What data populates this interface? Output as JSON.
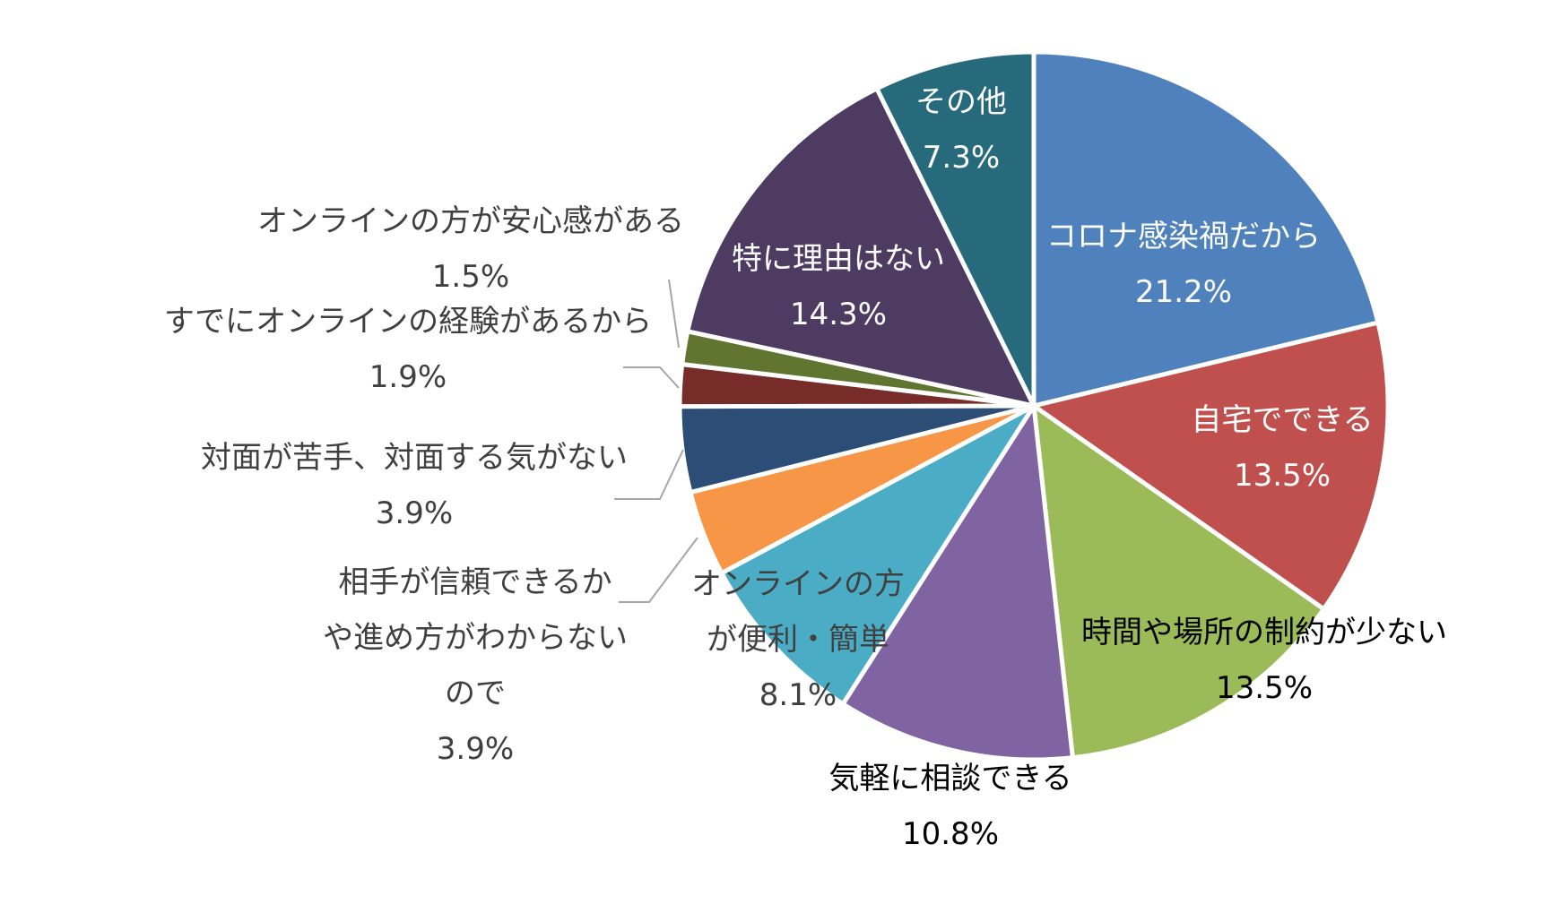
{
  "chart_data": {
    "type": "pie",
    "start_angle_deg": 0,
    "direction": "clockwise",
    "slices": [
      {
        "label": [
          "コロナ感染禍だから"
        ],
        "value_label": "21.2%",
        "value": 21.2,
        "color": "#4f81bd",
        "label_color": "#ffffff",
        "label_mode": "inside",
        "lines": [
          0
        ]
      },
      {
        "label": [
          "自宅でできる"
        ],
        "value_label": "13.5%",
        "value": 13.5,
        "color": "#c0504d",
        "label_color": "#ffffff",
        "label_mode": "inside",
        "lines": [
          0
        ]
      },
      {
        "label": [
          "時間や場所の制約が少ない"
        ],
        "value_label": "13.5%",
        "value": 13.5,
        "color": "#9bbb59",
        "label_color": "#000000",
        "label_mode": "inside",
        "lines": [
          0
        ]
      },
      {
        "label": [
          "気軽に相談できる"
        ],
        "value_label": "10.8%",
        "value": 10.8,
        "color": "#8064a2",
        "label_color": "#000000",
        "label_mode": "outside-below",
        "lines": [
          0
        ]
      },
      {
        "label": [
          "オンラインの方",
          "が便利・簡単"
        ],
        "value_label": "8.1%",
        "value": 8.1,
        "color": "#4bacc6",
        "label_color": "#404040",
        "label_mode": "inside",
        "lines": [
          0,
          1
        ]
      },
      {
        "label": [
          "相手が信頼できるか",
          "や進め方がわからない",
          "ので"
        ],
        "value_label": "3.9%",
        "value": 3.9,
        "color": "#f79646",
        "label_color": "#404040",
        "label_mode": "outside-left",
        "lines": [
          0,
          1,
          2
        ]
      },
      {
        "label": [
          "対面が苦手、対面する気がない"
        ],
        "value_label": "3.9%",
        "value": 3.9,
        "color": "#2c4d75",
        "label_color": "#404040",
        "label_mode": "outside-left",
        "lines": [
          0
        ]
      },
      {
        "label": [
          "すでにオンラインの経験があるから"
        ],
        "value_label": "1.9%",
        "value": 1.9,
        "color": "#772c2a",
        "label_color": "#404040",
        "label_mode": "outside-left",
        "lines": [
          0
        ]
      },
      {
        "label": [
          "オンラインの方が安心感がある"
        ],
        "value_label": "1.5%",
        "value": 1.5,
        "color": "#5f7530",
        "label_color": "#404040",
        "label_mode": "outside-left",
        "lines": [
          0
        ]
      },
      {
        "label": [
          "特に理由はない"
        ],
        "value_label": "14.3%",
        "value": 14.3,
        "color": "#4d3b62",
        "label_color": "#ffffff",
        "label_mode": "inside",
        "lines": [
          0
        ]
      },
      {
        "label": [
          "その他"
        ],
        "value_label": "7.3%",
        "value": 7.3,
        "color": "#276a7c",
        "label_color": "#ffffff",
        "label_mode": "inside",
        "lines": [
          0
        ]
      }
    ],
    "leader_line_color": "#a6a6a6",
    "legend": "none"
  }
}
